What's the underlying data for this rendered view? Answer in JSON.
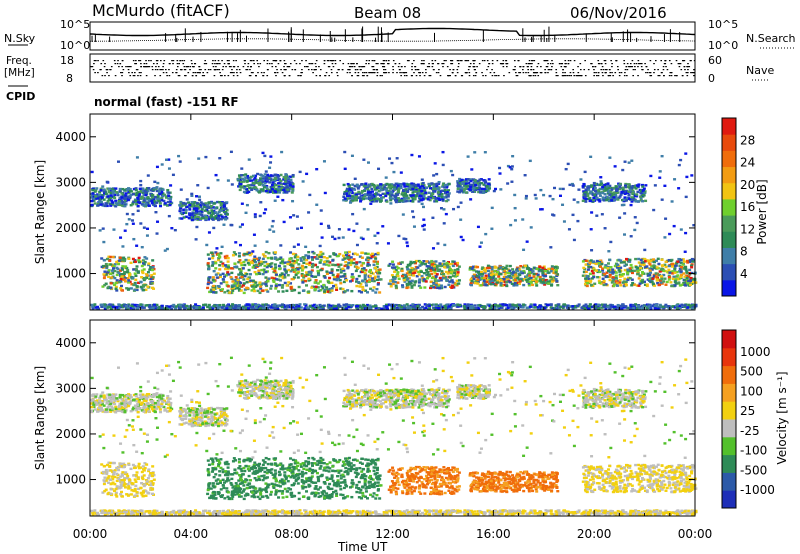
{
  "header": {
    "title": "McMurdo (fitACF)",
    "beam": "Beam 08",
    "date": "06/Nov/2016"
  },
  "status_panel": {
    "left_label": "N.Sky",
    "right_label": "N.Search",
    "tick_top": "10^5",
    "tick_bottom": "10^0",
    "right_tick_top": "10^5",
    "right_tick_bottom": "10^0"
  },
  "freq_panel": {
    "label_line1": "Freq.",
    "label_line2": "[MHz]",
    "ticks_left": [
      "18",
      "8"
    ],
    "right_label": "Nave",
    "ticks_right": [
      "60",
      "0"
    ]
  },
  "cpid": {
    "label": "CPID",
    "text": "normal (fast) -151 RF"
  },
  "colors": {
    "power": [
      "#0a16e6",
      "#2c4fb4",
      "#3f7ea8",
      "#2e8b57",
      "#4a9b5a",
      "#6fcf2e",
      "#f2c413",
      "#f39c12",
      "#f06d0b",
      "#e84a0c",
      "#e01a10"
    ],
    "velocity": [
      "#1e2fb8",
      "#2c5aa8",
      "#2e8b57",
      "#53c02c",
      "#bebebe",
      "#f2d010",
      "#f5a020",
      "#f06d0b",
      "#e8350c",
      "#d01010"
    ]
  },
  "chart_data": [
    {
      "type": "heatmap",
      "name": "power-panel",
      "ylabel": "Slant Range [km]",
      "xlabel": "",
      "yticks": [
        "1000",
        "2000",
        "3000",
        "4000"
      ],
      "ylim": [
        200,
        4500
      ],
      "xlim": [
        0,
        24
      ],
      "colorbar": {
        "label": "Power [dB]",
        "ticks": [
          "4",
          "8",
          "12",
          "16",
          "20",
          "24",
          "28"
        ],
        "range": [
          0,
          32
        ]
      },
      "echo_bands_km": {
        "near_range": [
          [
            0.0,
            24.0,
            250,
            350
          ]
        ],
        "e_region": [
          [
            0.4,
            2.5,
            650,
            1400
          ],
          [
            4.6,
            11.5,
            600,
            1500
          ],
          [
            11.8,
            14.6,
            700,
            1300
          ],
          [
            15.0,
            18.5,
            750,
            1200
          ],
          [
            19.5,
            24.0,
            750,
            1350
          ]
        ],
        "f_region": [
          [
            0.0,
            3.2,
            2500,
            2900
          ],
          [
            3.5,
            5.4,
            2200,
            2600
          ],
          [
            5.8,
            8.0,
            2800,
            3200
          ],
          [
            10.0,
            14.2,
            2600,
            3000
          ],
          [
            14.5,
            15.8,
            2800,
            3100
          ],
          [
            19.5,
            22.0,
            2600,
            3000
          ]
        ]
      }
    },
    {
      "type": "heatmap",
      "name": "velocity-panel",
      "ylabel": "Slant Range [km]",
      "xlabel": "Time UT",
      "yticks": [
        "1000",
        "2000",
        "3000",
        "4000"
      ],
      "xticks": [
        "00:00",
        "04:00",
        "08:00",
        "12:00",
        "16:00",
        "20:00",
        "00:00"
      ],
      "ylim": [
        200,
        4500
      ],
      "xlim": [
        0,
        24
      ],
      "colorbar": {
        "label": "Velocity [m s⁻¹]",
        "ticks": [
          "1000",
          "500",
          "100",
          "25",
          "-25",
          "-100",
          "-500",
          "-1000"
        ],
        "range": [
          -1000,
          1000
        ]
      }
    }
  ]
}
